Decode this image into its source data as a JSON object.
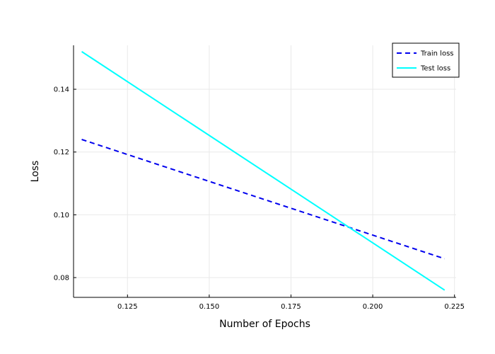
{
  "chart_data": {
    "type": "line",
    "xlabel": "Number of Epochs",
    "ylabel": "Loss",
    "xlim": [
      0.1085,
      0.2255
    ],
    "ylim": [
      0.0737,
      0.154
    ],
    "xticks": [
      0.125,
      0.15,
      0.175,
      0.2,
      0.225
    ],
    "xtick_labels": [
      "0.125",
      "0.150",
      "0.175",
      "0.200",
      "0.225"
    ],
    "yticks": [
      0.08,
      0.1,
      0.12,
      0.14
    ],
    "ytick_labels": [
      "0.08",
      "0.10",
      "0.12",
      "0.14"
    ],
    "grid": true,
    "legend_position": "top-right",
    "series": [
      {
        "name": "Train loss",
        "style": "dashed",
        "color": "#0000ee",
        "x": [
          0.111,
          0.222
        ],
        "y": [
          0.124,
          0.086
        ]
      },
      {
        "name": "Test loss",
        "style": "solid",
        "color": "#00ffff",
        "x": [
          0.111,
          0.222
        ],
        "y": [
          0.152,
          0.076
        ]
      }
    ]
  }
}
